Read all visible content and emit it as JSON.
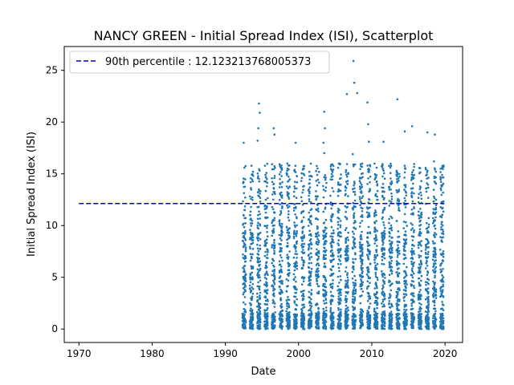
{
  "chart_data": {
    "type": "scatter",
    "title": "NANCY GREEN - Initial Spread Index (ISI), Scatterplot",
    "xlabel": "Date",
    "ylabel": "Initial Spread Index (ISI)",
    "xlim": [
      1968.0,
      2022.4
    ],
    "ylim": [
      -1.3,
      27.3
    ],
    "xticks": [
      1970,
      1980,
      1990,
      2000,
      2010,
      2020
    ],
    "yticks": [
      0,
      5,
      10,
      15,
      20,
      25
    ],
    "grid": false,
    "legend_position": "top-left",
    "legend": [
      {
        "label": "90th percentile : 12.123213768005373",
        "style": "dashed",
        "color": "#0000cc"
      }
    ],
    "reference_line": {
      "name": "90th percentile",
      "y": 12.123213768005373,
      "x_start": 1970.0,
      "x_end": 2019.9,
      "color": "#0000cc"
    },
    "series": [
      {
        "marker_color": "#1f77b4",
        "season_ranges": [
          [
            1992.35,
            1992.8
          ],
          [
            1993.35,
            1993.8
          ],
          [
            1994.35,
            1994.8
          ],
          [
            1995.35,
            1995.8
          ],
          [
            1996.35,
            1996.8
          ],
          [
            1997.35,
            1997.8
          ],
          [
            1998.35,
            1998.8
          ],
          [
            1999.35,
            1999.8
          ],
          [
            2000.35,
            2000.8
          ],
          [
            2001.35,
            2001.8
          ],
          [
            2002.35,
            2002.8
          ],
          [
            2003.35,
            2003.8
          ],
          [
            2004.35,
            2004.8
          ],
          [
            2005.35,
            2005.8
          ],
          [
            2006.35,
            2006.8
          ],
          [
            2007.35,
            2007.8
          ],
          [
            2008.35,
            2008.8
          ],
          [
            2009.35,
            2009.8
          ],
          [
            2010.35,
            2010.8
          ],
          [
            2011.35,
            2011.8
          ],
          [
            2012.35,
            2012.8
          ],
          [
            2013.35,
            2013.8
          ],
          [
            2014.35,
            2014.8
          ],
          [
            2015.35,
            2015.8
          ],
          [
            2016.35,
            2016.8
          ],
          [
            2017.35,
            2017.8
          ],
          [
            2018.35,
            2018.8
          ],
          [
            2019.35,
            2019.8
          ]
        ],
        "points_per_season": 150,
        "notable_points": [
          {
            "x": 1992.5,
            "y": 18.0
          },
          {
            "x": 1992.6,
            "y": 15.6
          },
          {
            "x": 1994.6,
            "y": 21.8
          },
          {
            "x": 1994.7,
            "y": 20.9
          },
          {
            "x": 1994.5,
            "y": 19.4
          },
          {
            "x": 1994.4,
            "y": 18.2
          },
          {
            "x": 1996.6,
            "y": 19.4
          },
          {
            "x": 1996.7,
            "y": 18.8
          },
          {
            "x": 1998.5,
            "y": 15.5
          },
          {
            "x": 1999.6,
            "y": 18.0
          },
          {
            "x": 2003.5,
            "y": 21.0
          },
          {
            "x": 2003.6,
            "y": 19.4
          },
          {
            "x": 2003.4,
            "y": 18.0
          },
          {
            "x": 2003.5,
            "y": 17.0
          },
          {
            "x": 2006.6,
            "y": 22.7
          },
          {
            "x": 2007.5,
            "y": 25.9
          },
          {
            "x": 2007.6,
            "y": 23.8
          },
          {
            "x": 2008.0,
            "y": 22.8
          },
          {
            "x": 2009.4,
            "y": 21.9
          },
          {
            "x": 2009.5,
            "y": 19.8
          },
          {
            "x": 2009.6,
            "y": 18.1
          },
          {
            "x": 2011.6,
            "y": 18.1
          },
          {
            "x": 2013.5,
            "y": 22.2
          },
          {
            "x": 2014.5,
            "y": 19.1
          },
          {
            "x": 2015.5,
            "y": 19.6
          },
          {
            "x": 2017.6,
            "y": 19.0
          },
          {
            "x": 2018.6,
            "y": 18.8
          },
          {
            "x": 2018.5,
            "y": 16.2
          },
          {
            "x": 2007.4,
            "y": 16.9
          },
          {
            "x": 2005.5,
            "y": 16.0
          }
        ]
      }
    ]
  }
}
